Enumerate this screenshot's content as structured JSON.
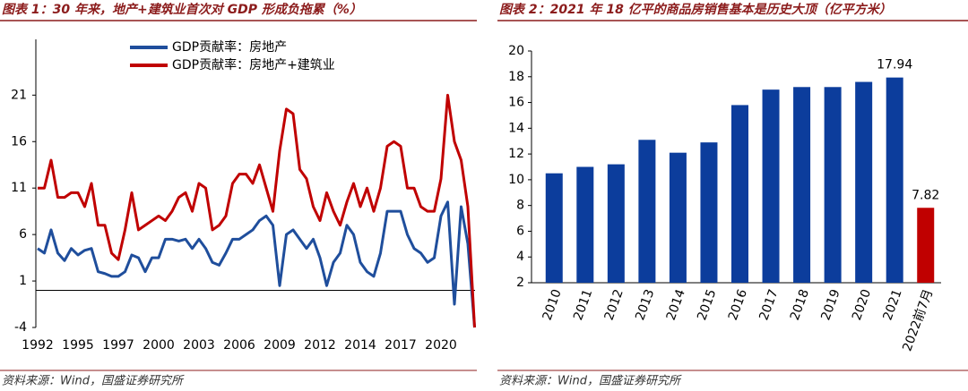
{
  "chart_data": [
    {
      "type": "line",
      "title": "图表 1：30 年来，地产+建筑业首次对 GDP 形成负拖累（%）",
      "source": "资料来源：Wind，国盛证券研究所",
      "categories": [
        "1992",
        null,
        null,
        null,
        null,
        null,
        "1995",
        null,
        null,
        null,
        null,
        null,
        "1997",
        null,
        null,
        null,
        null,
        null,
        "2000",
        null,
        null,
        null,
        null,
        null,
        "2003",
        null,
        null,
        null,
        null,
        null,
        "2006",
        null,
        null,
        null,
        null,
        null,
        "2009",
        null,
        null,
        null,
        null,
        null,
        "2012",
        null,
        null,
        null,
        null,
        null,
        "2014",
        null,
        null,
        null,
        null,
        null,
        "2017",
        null,
        null,
        null,
        null,
        null,
        "2020",
        null,
        null,
        null,
        null,
        null
      ],
      "series": [
        {
          "name": "GDP贡献率：房地产",
          "color": "#1f4e9c",
          "values": [
            4.5,
            4,
            6.5,
            4,
            3.2,
            4.5,
            3.8,
            4.3,
            4.5,
            2,
            1.8,
            1.5,
            1.5,
            2,
            3.8,
            3.5,
            2,
            3.5,
            3.5,
            5.5,
            5.5,
            5.3,
            5.5,
            4.5,
            5.5,
            4.5,
            3,
            2.7,
            4,
            5.5,
            5.5,
            6,
            6.5,
            7.5,
            8,
            7,
            0.5,
            6,
            6.5,
            5.5,
            4.5,
            5.5,
            3.5,
            0.5,
            3,
            4,
            7,
            6,
            3,
            2,
            1.5,
            4,
            8.5,
            8.5,
            8.5,
            6,
            4.5,
            4,
            3,
            3.5,
            8,
            9.5,
            -1.5,
            9,
            5,
            -4
          ]
        },
        {
          "name": "GDP贡献率：房地产+建筑业",
          "color": "#c00000",
          "values": [
            11,
            11,
            14,
            10,
            10,
            10.5,
            10.5,
            9,
            11.5,
            7,
            7,
            4,
            3.3,
            6.5,
            10.5,
            6.5,
            7,
            7.5,
            8,
            7.5,
            8.5,
            10,
            10.5,
            8.5,
            11.5,
            11,
            6.5,
            7,
            8,
            11.5,
            12.5,
            12.5,
            11.5,
            13.5,
            11,
            8.5,
            15,
            19.5,
            19,
            13,
            12,
            9,
            7.5,
            10.5,
            8.5,
            7,
            9.5,
            11.5,
            9,
            11,
            8.5,
            11,
            15.5,
            16,
            15.5,
            11,
            11,
            9,
            8.5,
            8.5,
            12,
            21,
            16,
            14,
            9,
            -4
          ]
        }
      ],
      "ylim": [
        -4,
        27
      ],
      "yticks": [
        -4,
        1,
        6,
        11,
        16,
        21
      ],
      "legend": "top"
    },
    {
      "type": "bar",
      "title": "图表 2：2021 年 18 亿平的商品房销售基本是历史大顶（亿平方米）",
      "source": "资料来源：Wind，国盛证券研究所",
      "categories": [
        "2010",
        "2011",
        "2012",
        "2013",
        "2014",
        "2015",
        "2016",
        "2017",
        "2018",
        "2019",
        "2020",
        "2021",
        "2022前7月"
      ],
      "values": [
        10.5,
        11,
        11.2,
        13.1,
        12.1,
        12.9,
        15.8,
        17,
        17.2,
        17.2,
        17.6,
        17.94,
        7.82
      ],
      "value_labels": [
        null,
        null,
        null,
        null,
        null,
        null,
        null,
        null,
        null,
        null,
        null,
        "17.94",
        "7.82"
      ],
      "colors": [
        "#0c3d9c",
        "#0c3d9c",
        "#0c3d9c",
        "#0c3d9c",
        "#0c3d9c",
        "#0c3d9c",
        "#0c3d9c",
        "#0c3d9c",
        "#0c3d9c",
        "#0c3d9c",
        "#0c3d9c",
        "#0c3d9c",
        "#c00000"
      ],
      "ylim": [
        2,
        20
      ],
      "yticks": [
        2,
        4,
        6,
        8,
        10,
        12,
        14,
        16,
        18,
        20
      ]
    }
  ]
}
